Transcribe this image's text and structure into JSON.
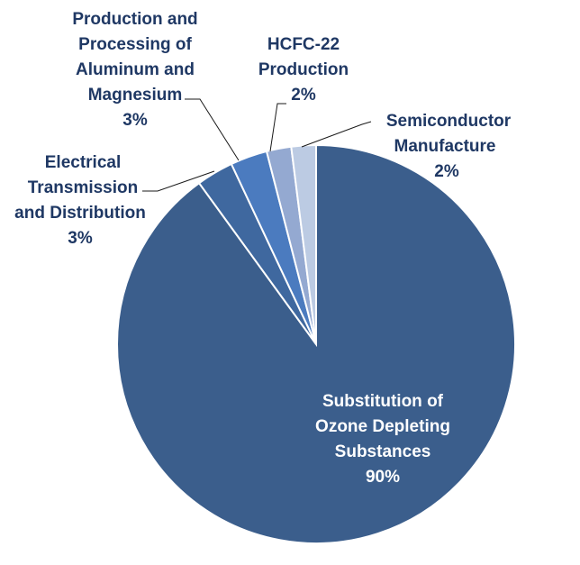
{
  "chart_data": {
    "type": "pie",
    "slices": [
      {
        "label": "Substitution of Ozone Depleting Substances",
        "value": 90,
        "value_label": "90%",
        "color": "#3b5e8c"
      },
      {
        "label": "Electrical Transmission and Distribution",
        "value": 3,
        "value_label": "3%",
        "color": "#3f689f"
      },
      {
        "label": "Production and Processing of Aluminum and Magnesium",
        "value": 3,
        "value_label": "3%",
        "color": "#4b7bbf"
      },
      {
        "label": "HCFC-22 Production",
        "value": 2,
        "value_label": "2%",
        "color": "#94a9d1"
      },
      {
        "label": "Semiconductor Manufacture",
        "value": 2,
        "value_label": "2%",
        "color": "#bccbe3"
      }
    ],
    "start_angle": "12 o'clock",
    "direction": "clockwise",
    "legend": "none",
    "label_color": "#1f3864"
  },
  "labels": {
    "substitution": {
      "lines": [
        "Substitution of",
        "Ozone Depleting",
        "Substances"
      ],
      "pct": "90%"
    },
    "electrical": {
      "lines": [
        "Electrical",
        "Transmission",
        "and Distribution"
      ],
      "pct": "3%"
    },
    "aluminum": {
      "lines": [
        "Production and",
        "Processing of",
        "Aluminum and",
        "Magnesium"
      ],
      "pct": "3%"
    },
    "hcfc": {
      "lines": [
        "HCFC-22",
        "Production"
      ],
      "pct": "2%"
    },
    "semiconductor": {
      "lines": [
        "Semiconductor",
        "Manufacture"
      ],
      "pct": "2%"
    }
  }
}
